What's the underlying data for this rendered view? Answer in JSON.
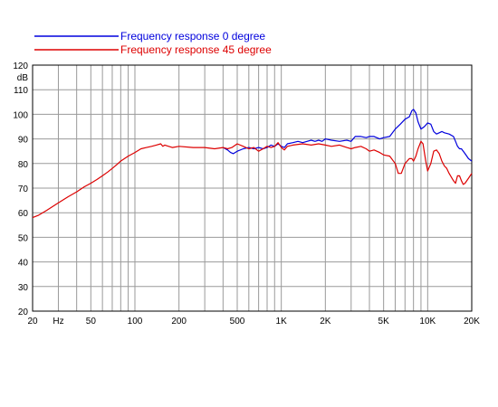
{
  "chart_data": {
    "type": "line",
    "title": "",
    "xlabel": "",
    "ylabel": "dB",
    "xscale": "log",
    "xlim": [
      20,
      20000
    ],
    "ylim": [
      20,
      120
    ],
    "grid": true,
    "legend": "top-left",
    "x_tick_labels": [
      {
        "x": 20,
        "label": "20"
      },
      {
        "x": 30,
        "label": "Hz"
      },
      {
        "x": 50,
        "label": "50"
      },
      {
        "x": 100,
        "label": "100"
      },
      {
        "x": 200,
        "label": "200"
      },
      {
        "x": 500,
        "label": "500"
      },
      {
        "x": 1000,
        "label": "1K"
      },
      {
        "x": 2000,
        "label": "2K"
      },
      {
        "x": 5000,
        "label": "5K"
      },
      {
        "x": 10000,
        "label": "10K"
      },
      {
        "x": 20000,
        "label": "20K"
      }
    ],
    "y_ticks": [
      20,
      30,
      40,
      50,
      60,
      70,
      80,
      90,
      100,
      110,
      120
    ],
    "series": [
      {
        "name": "Frequency response 0 degree",
        "color": "#0000dd",
        "points": [
          [
            400,
            86.5
          ],
          [
            430,
            85.5
          ],
          [
            450,
            84.5
          ],
          [
            470,
            84
          ],
          [
            500,
            85
          ],
          [
            550,
            86
          ],
          [
            600,
            86.5
          ],
          [
            650,
            86
          ],
          [
            700,
            86.5
          ],
          [
            750,
            86
          ],
          [
            800,
            86.5
          ],
          [
            850,
            87.5
          ],
          [
            900,
            87
          ],
          [
            950,
            88
          ],
          [
            1000,
            87
          ],
          [
            1050,
            86.5
          ],
          [
            1100,
            88
          ],
          [
            1200,
            88.5
          ],
          [
            1300,
            89
          ],
          [
            1400,
            88.5
          ],
          [
            1500,
            89
          ],
          [
            1600,
            89.5
          ],
          [
            1700,
            89
          ],
          [
            1800,
            89.5
          ],
          [
            1900,
            89
          ],
          [
            2000,
            90
          ],
          [
            2200,
            89.5
          ],
          [
            2500,
            89
          ],
          [
            2800,
            89.5
          ],
          [
            3000,
            89
          ],
          [
            3200,
            91
          ],
          [
            3500,
            91
          ],
          [
            3800,
            90.5
          ],
          [
            4000,
            91
          ],
          [
            4300,
            91
          ],
          [
            4700,
            90
          ],
          [
            5000,
            90.5
          ],
          [
            5500,
            91
          ],
          [
            6000,
            94
          ],
          [
            6500,
            96
          ],
          [
            7000,
            98
          ],
          [
            7500,
            99
          ],
          [
            7800,
            101.5
          ],
          [
            8000,
            102
          ],
          [
            8300,
            100.5
          ],
          [
            8600,
            97
          ],
          [
            9000,
            94
          ],
          [
            9500,
            95
          ],
          [
            10000,
            96.5
          ],
          [
            10500,
            96
          ],
          [
            11000,
            93
          ],
          [
            11500,
            92
          ],
          [
            12000,
            92.5
          ],
          [
            12500,
            93
          ],
          [
            13000,
            92.5
          ],
          [
            14000,
            92
          ],
          [
            15000,
            91
          ],
          [
            15500,
            89
          ],
          [
            16000,
            87
          ],
          [
            16500,
            86
          ],
          [
            17000,
            86
          ],
          [
            18000,
            84
          ],
          [
            19000,
            82
          ],
          [
            20000,
            81
          ]
        ]
      },
      {
        "name": "Frequency response 45 degree",
        "color": "#dd0000",
        "points": [
          [
            20,
            58
          ],
          [
            22,
            59
          ],
          [
            25,
            61
          ],
          [
            30,
            64
          ],
          [
            35,
            66.5
          ],
          [
            40,
            68.5
          ],
          [
            45,
            70.5
          ],
          [
            50,
            72
          ],
          [
            55,
            73.5
          ],
          [
            60,
            75
          ],
          [
            65,
            76.5
          ],
          [
            70,
            78
          ],
          [
            75,
            79.5
          ],
          [
            80,
            81
          ],
          [
            90,
            83
          ],
          [
            100,
            84.5
          ],
          [
            110,
            86
          ],
          [
            120,
            86.5
          ],
          [
            130,
            87
          ],
          [
            140,
            87.5
          ],
          [
            150,
            88
          ],
          [
            155,
            87
          ],
          [
            160,
            87.5
          ],
          [
            170,
            87
          ],
          [
            180,
            86.5
          ],
          [
            200,
            87
          ],
          [
            250,
            86.5
          ],
          [
            300,
            86.5
          ],
          [
            350,
            86
          ],
          [
            400,
            86.5
          ],
          [
            430,
            86
          ],
          [
            460,
            86.5
          ],
          [
            500,
            88
          ],
          [
            550,
            87
          ],
          [
            600,
            86
          ],
          [
            650,
            86.5
          ],
          [
            700,
            85
          ],
          [
            750,
            86
          ],
          [
            800,
            87
          ],
          [
            850,
            86.5
          ],
          [
            900,
            87
          ],
          [
            950,
            88.5
          ],
          [
            1000,
            86.5
          ],
          [
            1050,
            85.5
          ],
          [
            1100,
            87
          ],
          [
            1200,
            87.5
          ],
          [
            1400,
            88
          ],
          [
            1600,
            87.5
          ],
          [
            1800,
            88
          ],
          [
            2000,
            87.5
          ],
          [
            2200,
            87
          ],
          [
            2500,
            87.5
          ],
          [
            2800,
            86.5
          ],
          [
            3000,
            86
          ],
          [
            3200,
            86.5
          ],
          [
            3500,
            87
          ],
          [
            3800,
            86
          ],
          [
            4000,
            85
          ],
          [
            4300,
            85.5
          ],
          [
            4700,
            84.5
          ],
          [
            5000,
            83.5
          ],
          [
            5500,
            83
          ],
          [
            6000,
            80
          ],
          [
            6300,
            76
          ],
          [
            6600,
            76
          ],
          [
            7000,
            80
          ],
          [
            7500,
            82
          ],
          [
            7800,
            82
          ],
          [
            8000,
            81
          ],
          [
            8300,
            83
          ],
          [
            8600,
            86
          ],
          [
            9000,
            89
          ],
          [
            9300,
            88
          ],
          [
            9700,
            81
          ],
          [
            10000,
            77
          ],
          [
            10500,
            80
          ],
          [
            11000,
            85
          ],
          [
            11500,
            85.5
          ],
          [
            12000,
            84
          ],
          [
            12500,
            81
          ],
          [
            13000,
            79
          ],
          [
            13500,
            78
          ],
          [
            14000,
            76
          ],
          [
            15000,
            73
          ],
          [
            15500,
            72
          ],
          [
            16000,
            75
          ],
          [
            16500,
            75
          ],
          [
            17000,
            73
          ],
          [
            17500,
            71.5
          ],
          [
            18000,
            72
          ],
          [
            19000,
            74
          ],
          [
            20000,
            76
          ]
        ]
      }
    ]
  }
}
